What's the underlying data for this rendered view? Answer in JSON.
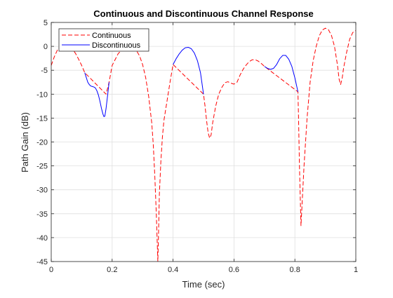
{
  "chart_data": {
    "type": "line",
    "title": "Continuous and Discontinuous Channel Response",
    "xlabel": "Time (sec)",
    "ylabel": "Path Gain (dB)",
    "xlim": [
      0,
      1
    ],
    "ylim": [
      -45,
      5
    ],
    "xticks": [
      0,
      0.2,
      0.4,
      0.6,
      0.8,
      1
    ],
    "xtick_labels": [
      "0",
      "0.2",
      "0.4",
      "0.6",
      "0.8",
      "1"
    ],
    "yticks": [
      5,
      0,
      -5,
      -10,
      -15,
      -20,
      -25,
      -30,
      -35,
      -40,
      -45
    ],
    "ytick_labels": [
      "5",
      "0",
      "-5",
      "-10",
      "-15",
      "-20",
      "-25",
      "-30",
      "-35",
      "-40",
      "-45"
    ],
    "grid": true,
    "legend_location": "top-left",
    "series": [
      {
        "name": "Continuous",
        "color": "#ff0000",
        "style": "dashed",
        "x": [
          0,
          0.01,
          0.02,
          0.03,
          0.05,
          0.07,
          0.08,
          0.09,
          0.1,
          0.11,
          0.18,
          0.19,
          0.2,
          0.22,
          0.24,
          0.26,
          0.28,
          0.29,
          0.3,
          0.31,
          0.32,
          0.33,
          0.335,
          0.34,
          0.345,
          0.35,
          0.352,
          0.355,
          0.36,
          0.365,
          0.37,
          0.38,
          0.39,
          0.4,
          0.5,
          0.505,
          0.51,
          0.515,
          0.52,
          0.525,
          0.53,
          0.54,
          0.55,
          0.56,
          0.57,
          0.58,
          0.59,
          0.6,
          0.61,
          0.62,
          0.63,
          0.64,
          0.65,
          0.66,
          0.67,
          0.68,
          0.69,
          0.7,
          0.81,
          0.812,
          0.815,
          0.82,
          0.83,
          0.84,
          0.85,
          0.86,
          0.87,
          0.88,
          0.89,
          0.9,
          0.91,
          0.92,
          0.93,
          0.94,
          0.945,
          0.95,
          0.955,
          0.96,
          0.97,
          0.98,
          0.99,
          1.0
        ],
        "y": [
          -4.0,
          -2.2,
          -0.8,
          0.0,
          0.3,
          -0.6,
          -1.5,
          -2.7,
          -4.0,
          -5.5,
          -10.0,
          -7.5,
          -4.0,
          -1.5,
          -0.3,
          0.0,
          -0.9,
          -2.0,
          -3.8,
          -6.5,
          -10.5,
          -16.0,
          -20.5,
          -27.0,
          -35.0,
          -45.0,
          -40.0,
          -31.0,
          -24.0,
          -19.0,
          -15.5,
          -11.5,
          -7.5,
          -3.8,
          -10.0,
          -12.5,
          -15.5,
          -18.0,
          -19.2,
          -18.5,
          -16.0,
          -12.5,
          -10.0,
          -8.6,
          -7.6,
          -7.4,
          -7.7,
          -7.9,
          -7.5,
          -6.0,
          -4.8,
          -3.9,
          -3.2,
          -2.8,
          -2.8,
          -3.1,
          -3.6,
          -4.2,
          -9.5,
          -15.0,
          -25.0,
          -37.5,
          -25.0,
          -15.0,
          -7.5,
          -3.0,
          0.0,
          2.2,
          3.4,
          3.8,
          3.5,
          2.3,
          0.0,
          -4.0,
          -6.8,
          -8.0,
          -6.8,
          -4.5,
          -1.2,
          1.5,
          2.9,
          3.3
        ]
      },
      {
        "name": "Discontinuous",
        "color": "#0000ff",
        "style": "solid",
        "segments": [
          {
            "x": [
              0.11,
              0.115,
              0.12,
              0.125,
              0.13,
              0.135,
              0.14,
              0.145,
              0.15,
              0.155,
              0.16,
              0.165,
              0.17,
              0.173,
              0.176,
              0.18,
              0.185,
              0.19
            ],
            "y": [
              -5.5,
              -6.5,
              -7.5,
              -8.0,
              -8.3,
              -8.4,
              -8.5,
              -8.7,
              -9.3,
              -10.2,
              -11.5,
              -13.0,
              -14.2,
              -14.7,
              -14.6,
              -13.0,
              -10.3,
              -7.5
            ]
          },
          {
            "x": [
              0.4,
              0.41,
              0.42,
              0.43,
              0.44,
              0.45,
              0.46,
              0.47,
              0.48,
              0.49,
              0.5
            ],
            "y": [
              -3.8,
              -2.6,
              -1.6,
              -0.8,
              -0.3,
              -0.2,
              -0.5,
              -1.4,
              -3.0,
              -5.5,
              -10.0
            ]
          },
          {
            "x": [
              0.7,
              0.71,
              0.72,
              0.73,
              0.74,
              0.75,
              0.76,
              0.77,
              0.78,
              0.79,
              0.8,
              0.81
            ],
            "y": [
              -4.2,
              -4.6,
              -4.8,
              -4.6,
              -3.8,
              -2.6,
              -1.9,
              -1.9,
              -2.7,
              -4.2,
              -6.6,
              -9.5
            ]
          }
        ]
      }
    ]
  }
}
